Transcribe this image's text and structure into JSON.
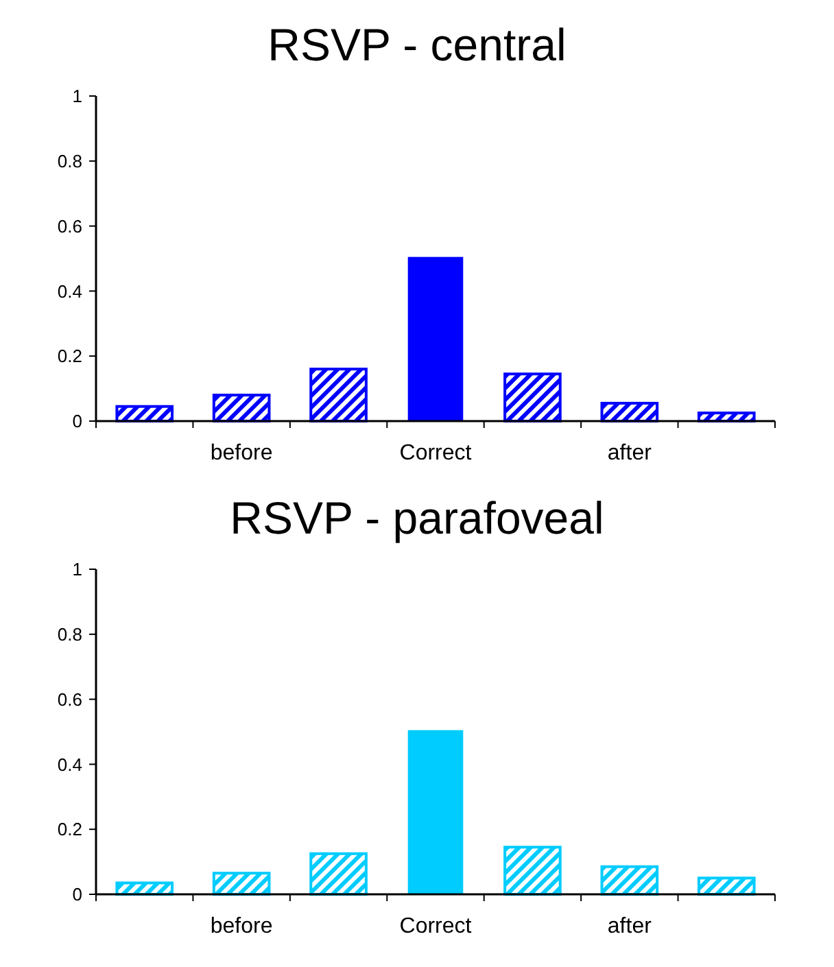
{
  "chart_data": [
    {
      "type": "bar",
      "title": "RSVP - central",
      "categories": [
        null,
        "before",
        null,
        "Correct",
        null,
        "after",
        null
      ],
      "series": [
        {
          "color": "#0000ff",
          "values": [
            0.045,
            0.08,
            0.16,
            null,
            0.145,
            0.055,
            0.025
          ]
        },
        {
          "color": "#0000ff",
          "values": [
            null,
            null,
            null,
            0.505,
            null,
            null,
            null
          ]
        }
      ],
      "ylim": [
        0,
        1
      ],
      "yticks": [
        0,
        0.2,
        0.4,
        0.6,
        0.8,
        1
      ]
    },
    {
      "type": "bar",
      "title": "RSVP - parafoveal",
      "categories": [
        null,
        "before",
        null,
        "Correct",
        null,
        "after",
        null
      ],
      "series": [
        {
          "color": "#00ccff",
          "values": [
            0.035,
            0.065,
            0.125,
            null,
            0.145,
            0.085,
            0.05
          ]
        },
        {
          "color": "#00ccff",
          "values": [
            null,
            null,
            null,
            0.505,
            null,
            null,
            null
          ]
        }
      ],
      "ylim": [
        0,
        1
      ],
      "yticks": [
        0,
        0.2,
        0.4,
        0.6,
        0.8,
        1
      ]
    }
  ]
}
